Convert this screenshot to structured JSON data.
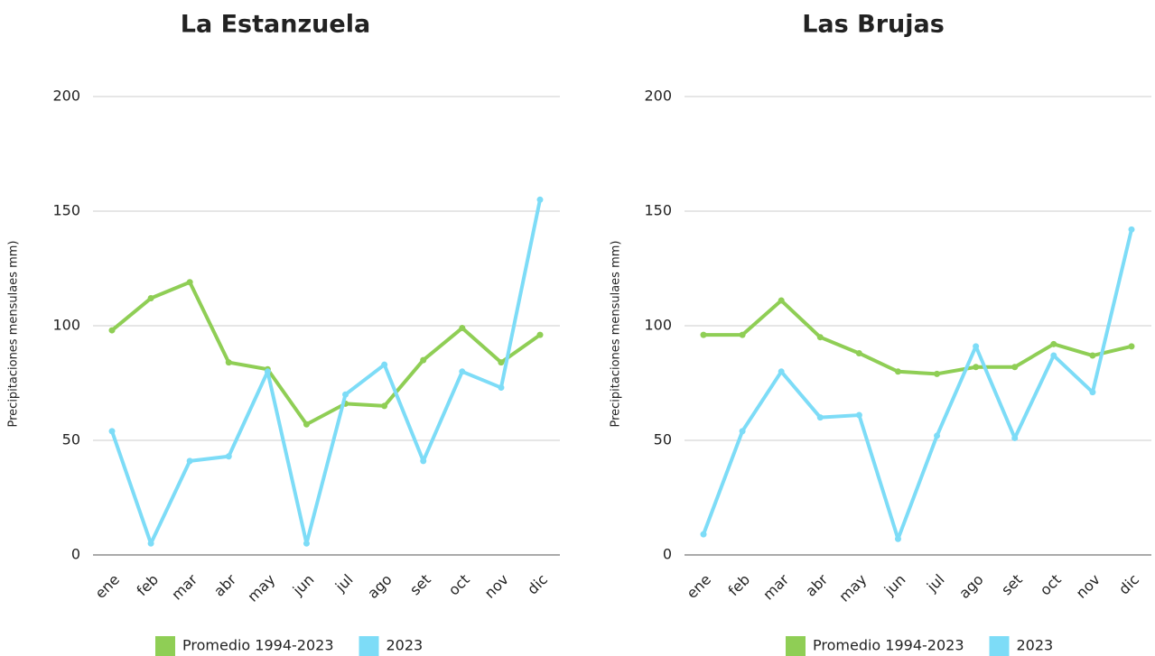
{
  "chart_data": [
    {
      "type": "line",
      "title": "La Estanzuela",
      "ylabel": "Precipitaciones mensulaes mm)",
      "categories": [
        "ene",
        "feb",
        "mar",
        "abr",
        "may",
        "jun",
        "jul",
        "ago",
        "set",
        "oct",
        "nov",
        "dic"
      ],
      "series": [
        {
          "name": "Promedio 1994-2023",
          "color": "#8fce55",
          "values": [
            98,
            112,
            119,
            84,
            81,
            57,
            66,
            65,
            85,
            99,
            84,
            96
          ]
        },
        {
          "name": "2023",
          "color": "#7ddcf7",
          "values": [
            54,
            5,
            41,
            43,
            80,
            5,
            70,
            83,
            41,
            80,
            73,
            155
          ]
        }
      ],
      "ylim": [
        0,
        200
      ],
      "yticks": [
        0,
        50,
        100,
        150,
        200
      ],
      "grid": true,
      "legend": "bottom"
    },
    {
      "type": "line",
      "title": "Las Brujas",
      "ylabel": "Precipitaciones mensulaes mm)",
      "categories": [
        "ene",
        "feb",
        "mar",
        "abr",
        "may",
        "jun",
        "jul",
        "ago",
        "set",
        "oct",
        "nov",
        "dic"
      ],
      "series": [
        {
          "name": "Promedio 1994-2023",
          "color": "#8fce55",
          "values": [
            96,
            96,
            111,
            95,
            88,
            80,
            79,
            82,
            82,
            92,
            87,
            91
          ]
        },
        {
          "name": "2023",
          "color": "#7ddcf7",
          "values": [
            9,
            54,
            80,
            60,
            61,
            7,
            52,
            91,
            51,
            87,
            71,
            142
          ]
        }
      ],
      "ylim": [
        0,
        200
      ],
      "yticks": [
        0,
        50,
        100,
        150,
        200
      ],
      "grid": true,
      "legend": "bottom"
    }
  ]
}
